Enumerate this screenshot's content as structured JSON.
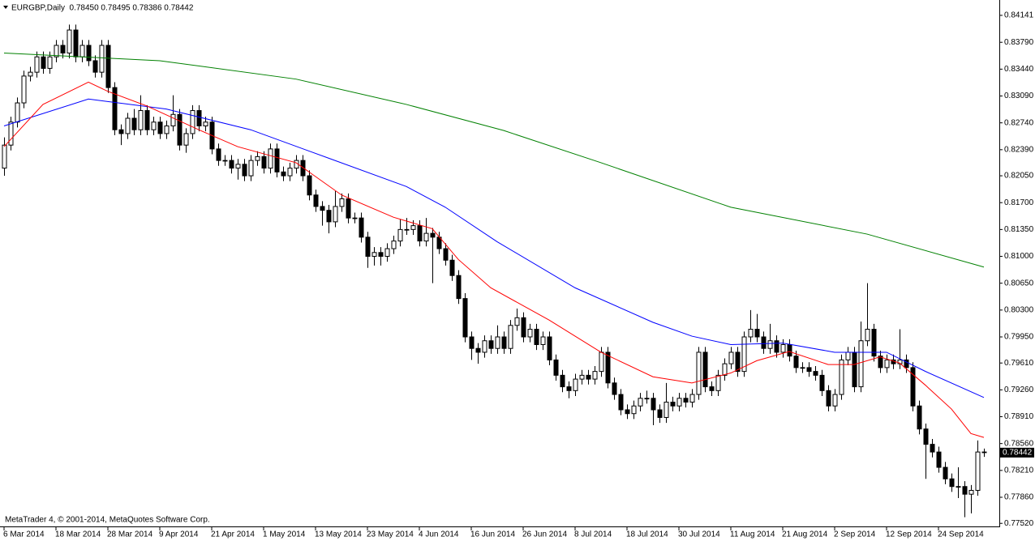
{
  "chart_data": {
    "type": "candlestick",
    "title": "EURGBP,Daily  0.78450 0.78495 0.78386 0.78442",
    "footer": "MetaTrader 4, © 2001-2014, MetaQuotes Software Corp.",
    "last_label": "0.78442",
    "categories": [
      "6 Mar 2014",
      null,
      null,
      null,
      null,
      null,
      null,
      null,
      "18 Mar 2014",
      null,
      null,
      null,
      null,
      null,
      null,
      null,
      "28 Mar 2014",
      null,
      null,
      null,
      null,
      null,
      null,
      null,
      "9 Apr 2014",
      null,
      null,
      null,
      null,
      null,
      null,
      null,
      "21 Apr 2014",
      null,
      null,
      null,
      null,
      null,
      null,
      null,
      "1 May 2014",
      null,
      null,
      null,
      null,
      null,
      null,
      null,
      "13 May 2014",
      null,
      null,
      null,
      null,
      null,
      null,
      null,
      "23 May 2014",
      null,
      null,
      null,
      null,
      null,
      null,
      null,
      "4 Jun 2014",
      null,
      null,
      null,
      null,
      null,
      null,
      null,
      "16 Jun 2014",
      null,
      null,
      null,
      null,
      null,
      null,
      null,
      "26 Jun 2014",
      null,
      null,
      null,
      null,
      null,
      null,
      null,
      "8 Jul 2014",
      null,
      null,
      null,
      null,
      null,
      null,
      null,
      "18 Jul 2014",
      null,
      null,
      null,
      null,
      null,
      null,
      null,
      "30 Jul 2014",
      null,
      null,
      null,
      null,
      null,
      null,
      null,
      "11 Aug 2014",
      null,
      null,
      null,
      null,
      null,
      null,
      null,
      "21 Aug 2014",
      null,
      null,
      null,
      null,
      null,
      null,
      null,
      "2 Sep 2014",
      null,
      null,
      null,
      null,
      null,
      null,
      null,
      "12 Sep 2014",
      null,
      null,
      null,
      null,
      null,
      null,
      null,
      "24 Sep 2014",
      null,
      null,
      null,
      null,
      null,
      null,
      null
    ],
    "ohlc": [
      [
        0.8215,
        0.8255,
        0.8205,
        0.8245
      ],
      [
        0.8245,
        0.8282,
        0.8238,
        0.8275
      ],
      [
        0.8275,
        0.8307,
        0.8268,
        0.83
      ],
      [
        0.83,
        0.8342,
        0.8293,
        0.8335
      ],
      [
        0.8335,
        0.8347,
        0.8328,
        0.834
      ],
      [
        0.834,
        0.8367,
        0.8333,
        0.836
      ],
      [
        0.836,
        0.8367,
        0.8338,
        0.8345
      ],
      [
        0.8345,
        0.8367,
        0.8338,
        0.836
      ],
      [
        0.836,
        0.8382,
        0.8353,
        0.8375
      ],
      [
        0.8375,
        0.8382,
        0.8358,
        0.8365
      ],
      [
        0.8365,
        0.8402,
        0.8358,
        0.8395
      ],
      [
        0.8395,
        0.8402,
        0.8353,
        0.836
      ],
      [
        0.836,
        0.8382,
        0.8353,
        0.8375
      ],
      [
        0.8375,
        0.8382,
        0.8348,
        0.8355
      ],
      [
        0.8355,
        0.8362,
        0.8333,
        0.834
      ],
      [
        0.834,
        0.8382,
        0.8333,
        0.8375
      ],
      [
        0.8375,
        0.8382,
        0.8313,
        0.832
      ],
      [
        0.832,
        0.8327,
        0.8258,
        0.8265
      ],
      [
        0.8265,
        0.8272,
        0.8245,
        0.826
      ],
      [
        0.826,
        0.8287,
        0.8253,
        0.828
      ],
      [
        0.828,
        0.8292,
        0.8258,
        0.8265
      ],
      [
        0.8265,
        0.831,
        0.8258,
        0.829
      ],
      [
        0.829,
        0.8297,
        0.8258,
        0.8265
      ],
      [
        0.8265,
        0.8282,
        0.8258,
        0.8275
      ],
      [
        0.8275,
        0.8282,
        0.8253,
        0.826
      ],
      [
        0.826,
        0.8277,
        0.8253,
        0.827
      ],
      [
        0.827,
        0.831,
        0.8263,
        0.8285
      ],
      [
        0.8285,
        0.8292,
        0.8238,
        0.8245
      ],
      [
        0.8245,
        0.8267,
        0.8235,
        0.826
      ],
      [
        0.826,
        0.8297,
        0.8253,
        0.829
      ],
      [
        0.829,
        0.8297,
        0.8263,
        0.827
      ],
      [
        0.827,
        0.8282,
        0.8263,
        0.8275
      ],
      [
        0.8275,
        0.8282,
        0.8233,
        0.824
      ],
      [
        0.824,
        0.8247,
        0.8218,
        0.8225
      ],
      [
        0.8225,
        0.8232,
        0.8218,
        0.8225
      ],
      [
        0.8225,
        0.8232,
        0.8208,
        0.8215
      ],
      [
        0.8215,
        0.8227,
        0.82,
        0.822
      ],
      [
        0.822,
        0.8227,
        0.8198,
        0.8205
      ],
      [
        0.8205,
        0.8232,
        0.8198,
        0.8225
      ],
      [
        0.8225,
        0.8237,
        0.8218,
        0.823
      ],
      [
        0.823,
        0.8237,
        0.8208,
        0.8215
      ],
      [
        0.8215,
        0.8247,
        0.8208,
        0.824
      ],
      [
        0.824,
        0.8247,
        0.8203,
        0.821
      ],
      [
        0.821,
        0.8217,
        0.8198,
        0.8205
      ],
      [
        0.8205,
        0.8222,
        0.8198,
        0.8215
      ],
      [
        0.8215,
        0.8232,
        0.8208,
        0.8225
      ],
      [
        0.8225,
        0.8232,
        0.8198,
        0.8205
      ],
      [
        0.8205,
        0.8212,
        0.8173,
        0.818
      ],
      [
        0.818,
        0.8187,
        0.8158,
        0.8165
      ],
      [
        0.8165,
        0.8172,
        0.814,
        0.816
      ],
      [
        0.816,
        0.8167,
        0.813,
        0.8145
      ],
      [
        0.8145,
        0.8185,
        0.8138,
        0.8165
      ],
      [
        0.8165,
        0.8182,
        0.8158,
        0.8175
      ],
      [
        0.8175,
        0.8182,
        0.8143,
        0.815
      ],
      [
        0.815,
        0.8157,
        0.8143,
        0.815
      ],
      [
        0.815,
        0.8157,
        0.8118,
        0.8125
      ],
      [
        0.8125,
        0.8132,
        0.8085,
        0.81
      ],
      [
        0.81,
        0.8112,
        0.8088,
        0.8105
      ],
      [
        0.8105,
        0.8112,
        0.8088,
        0.81
      ],
      [
        0.81,
        0.8117,
        0.8093,
        0.811
      ],
      [
        0.811,
        0.8127,
        0.8103,
        0.812
      ],
      [
        0.812,
        0.8148,
        0.8113,
        0.8135
      ],
      [
        0.8135,
        0.815,
        0.8128,
        0.8135
      ],
      [
        0.8135,
        0.8147,
        0.8128,
        0.814
      ],
      [
        0.814,
        0.8147,
        0.8113,
        0.812
      ],
      [
        0.812,
        0.815,
        0.8113,
        0.813
      ],
      [
        0.813,
        0.8137,
        0.8065,
        0.8125
      ],
      [
        0.8125,
        0.8132,
        0.8103,
        0.811
      ],
      [
        0.811,
        0.8117,
        0.8088,
        0.8095
      ],
      [
        0.8095,
        0.8102,
        0.8068,
        0.8075
      ],
      [
        0.8075,
        0.8082,
        0.8038,
        0.8045
      ],
      [
        0.8045,
        0.8052,
        0.7988,
        0.7995
      ],
      [
        0.7995,
        0.8002,
        0.7965,
        0.798
      ],
      [
        0.798,
        0.7987,
        0.796,
        0.7975
      ],
      [
        0.7975,
        0.7997,
        0.7968,
        0.799
      ],
      [
        0.799,
        0.7997,
        0.7973,
        0.798
      ],
      [
        0.798,
        0.801,
        0.7973,
        0.7995
      ],
      [
        0.7995,
        0.8002,
        0.7973,
        0.798
      ],
      [
        0.798,
        0.8017,
        0.7973,
        0.801
      ],
      [
        0.801,
        0.8032,
        0.8003,
        0.802
      ],
      [
        0.802,
        0.8027,
        0.7988,
        0.7995
      ],
      [
        0.7995,
        0.8012,
        0.7988,
        0.8005
      ],
      [
        0.8005,
        0.8012,
        0.7978,
        0.7985
      ],
      [
        0.7985,
        0.8002,
        0.7978,
        0.7995
      ],
      [
        0.7995,
        0.8002,
        0.7958,
        0.7965
      ],
      [
        0.7965,
        0.7972,
        0.7938,
        0.7945
      ],
      [
        0.7945,
        0.7952,
        0.7923,
        0.793
      ],
      [
        0.793,
        0.7937,
        0.7915,
        0.7925
      ],
      [
        0.7925,
        0.7947,
        0.7918,
        0.794
      ],
      [
        0.794,
        0.7952,
        0.7933,
        0.7945
      ],
      [
        0.7945,
        0.7952,
        0.7933,
        0.794
      ],
      [
        0.794,
        0.7957,
        0.7933,
        0.795
      ],
      [
        0.795,
        0.7982,
        0.7943,
        0.7975
      ],
      [
        0.7975,
        0.7982,
        0.7928,
        0.7935
      ],
      [
        0.7935,
        0.7942,
        0.7913,
        0.792
      ],
      [
        0.792,
        0.7927,
        0.7893,
        0.79
      ],
      [
        0.79,
        0.7907,
        0.7888,
        0.7895
      ],
      [
        0.7895,
        0.7912,
        0.7888,
        0.7905
      ],
      [
        0.7905,
        0.7922,
        0.7898,
        0.7915
      ],
      [
        0.7915,
        0.7925,
        0.7908,
        0.7915
      ],
      [
        0.7915,
        0.7922,
        0.788,
        0.79
      ],
      [
        0.79,
        0.7907,
        0.7883,
        0.789
      ],
      [
        0.789,
        0.7935,
        0.7883,
        0.791
      ],
      [
        0.791,
        0.7917,
        0.7898,
        0.7905
      ],
      [
        0.7905,
        0.7922,
        0.7898,
        0.7915
      ],
      [
        0.7915,
        0.7922,
        0.7903,
        0.791
      ],
      [
        0.791,
        0.7927,
        0.7903,
        0.792
      ],
      [
        0.792,
        0.7982,
        0.7913,
        0.7975
      ],
      [
        0.7975,
        0.7982,
        0.7923,
        0.793
      ],
      [
        0.793,
        0.7937,
        0.7918,
        0.7925
      ],
      [
        0.7925,
        0.7952,
        0.7918,
        0.7945
      ],
      [
        0.7945,
        0.7967,
        0.7938,
        0.796
      ],
      [
        0.796,
        0.7982,
        0.7953,
        0.7975
      ],
      [
        0.7975,
        0.7982,
        0.7943,
        0.795
      ],
      [
        0.795,
        0.8002,
        0.7943,
        0.7995
      ],
      [
        0.7995,
        0.803,
        0.7988,
        0.8005
      ],
      [
        0.8005,
        0.8025,
        0.7988,
        0.7995
      ],
      [
        0.7995,
        0.8002,
        0.7973,
        0.798
      ],
      [
        0.798,
        0.8012,
        0.7973,
        0.799
      ],
      [
        0.799,
        0.7997,
        0.7968,
        0.7975
      ],
      [
        0.7975,
        0.7992,
        0.7968,
        0.7985
      ],
      [
        0.7985,
        0.7992,
        0.7963,
        0.797
      ],
      [
        0.797,
        0.7977,
        0.7948,
        0.7955
      ],
      [
        0.7955,
        0.7962,
        0.7948,
        0.7955
      ],
      [
        0.7955,
        0.7962,
        0.7943,
        0.795
      ],
      [
        0.795,
        0.7957,
        0.7938,
        0.7945
      ],
      [
        0.7945,
        0.7952,
        0.7918,
        0.7925
      ],
      [
        0.7925,
        0.7932,
        0.7898,
        0.7905
      ],
      [
        0.7905,
        0.7927,
        0.7898,
        0.792
      ],
      [
        0.792,
        0.7972,
        0.7913,
        0.7965
      ],
      [
        0.7965,
        0.7982,
        0.7958,
        0.7975
      ],
      [
        0.7975,
        0.7982,
        0.7923,
        0.793
      ],
      [
        0.793,
        0.8015,
        0.7923,
        0.799
      ],
      [
        0.799,
        0.8065,
        0.7983,
        0.8005
      ],
      [
        0.8005,
        0.8012,
        0.7963,
        0.797
      ],
      [
        0.797,
        0.7977,
        0.7948,
        0.7955
      ],
      [
        0.7955,
        0.7972,
        0.7948,
        0.7965
      ],
      [
        0.7965,
        0.7972,
        0.7953,
        0.796
      ],
      [
        0.796,
        0.8005,
        0.7953,
        0.7965
      ],
      [
        0.7965,
        0.7972,
        0.7948,
        0.7955
      ],
      [
        0.7955,
        0.7962,
        0.7898,
        0.7905
      ],
      [
        0.7905,
        0.7912,
        0.7868,
        0.7875
      ],
      [
        0.7875,
        0.7882,
        0.781,
        0.7855
      ],
      [
        0.7855,
        0.7862,
        0.7838,
        0.7845
      ],
      [
        0.7845,
        0.7852,
        0.7818,
        0.7825
      ],
      [
        0.7825,
        0.7832,
        0.7803,
        0.781
      ],
      [
        0.781,
        0.7817,
        0.7793,
        0.78
      ],
      [
        0.78,
        0.7825,
        0.7785,
        0.78
      ],
      [
        0.78,
        0.7807,
        0.776,
        0.779
      ],
      [
        0.779,
        0.7802,
        0.7765,
        0.7795
      ],
      [
        0.7795,
        0.786,
        0.7788,
        0.7845
      ],
      [
        0.7845,
        0.78495,
        0.78386,
        0.78442
      ]
    ],
    "series": [
      {
        "color": "#008000",
        "x": [
          0,
          24,
          45,
          62,
          77,
          92,
          112,
          133,
          151
        ],
        "values": [
          0.8365,
          0.8355,
          0.8331,
          0.8298,
          0.8264,
          0.8222,
          0.8164,
          0.8129,
          0.8086
        ]
      },
      {
        "color": "#0000ff",
        "x": [
          0,
          13,
          25,
          38,
          50,
          62,
          68,
          76,
          88,
          100,
          106,
          112,
          120,
          128,
          136,
          142,
          151
        ],
        "values": [
          0.827,
          0.8305,
          0.8292,
          0.8265,
          0.8228,
          0.8191,
          0.8164,
          0.8119,
          0.8059,
          0.8014,
          0.7996,
          0.7985,
          0.7987,
          0.7975,
          0.7975,
          0.795,
          0.7916
        ]
      },
      {
        "color": "#ff0000",
        "x": [
          0,
          6,
          13,
          16,
          22,
          30,
          36,
          45,
          52,
          60,
          66,
          70,
          75,
          84,
          92,
          100,
          106,
          112,
          116,
          121,
          127,
          131,
          135,
          138,
          142,
          146,
          149,
          151
        ],
        "values": [
          0.8243,
          0.8298,
          0.8327,
          0.8315,
          0.8296,
          0.8265,
          0.8243,
          0.8222,
          0.818,
          0.8151,
          0.8136,
          0.8096,
          0.8059,
          0.8017,
          0.7975,
          0.7943,
          0.7935,
          0.7948,
          0.7964,
          0.7976,
          0.7959,
          0.7959,
          0.7969,
          0.7961,
          0.7932,
          0.7901,
          0.7869,
          0.7864
        ]
      }
    ],
    "ylim": [
      0.7748,
      0.8432
    ],
    "yticks": [
      {
        "value": 0.84141,
        "label": "0.84141"
      },
      {
        "value": 0.8379,
        "label": "0.83790"
      },
      {
        "value": 0.8344,
        "label": "0.83440"
      },
      {
        "value": 0.8309,
        "label": "0.83090"
      },
      {
        "value": 0.8274,
        "label": "0.82740"
      },
      {
        "value": 0.8239,
        "label": "0.82390"
      },
      {
        "value": 0.8205,
        "label": "0.82050"
      },
      {
        "value": 0.817,
        "label": "0.81700"
      },
      {
        "value": 0.8135,
        "label": "0.81350"
      },
      {
        "value": 0.81,
        "label": "0.81000"
      },
      {
        "value": 0.8065,
        "label": "0.80650"
      },
      {
        "value": 0.803,
        "label": "0.80300"
      },
      {
        "value": 0.7995,
        "label": "0.79950"
      },
      {
        "value": 0.7961,
        "label": "0.79610"
      },
      {
        "value": 0.7926,
        "label": "0.79260"
      },
      {
        "value": 0.7891,
        "label": "0.78910"
      },
      {
        "value": 0.7856,
        "label": "0.78560"
      },
      {
        "value": 0.7821,
        "label": "0.78210"
      },
      {
        "value": 0.7786,
        "label": "0.77860"
      },
      {
        "value": 0.7752,
        "label": "0.77520"
      }
    ],
    "grid": false
  }
}
